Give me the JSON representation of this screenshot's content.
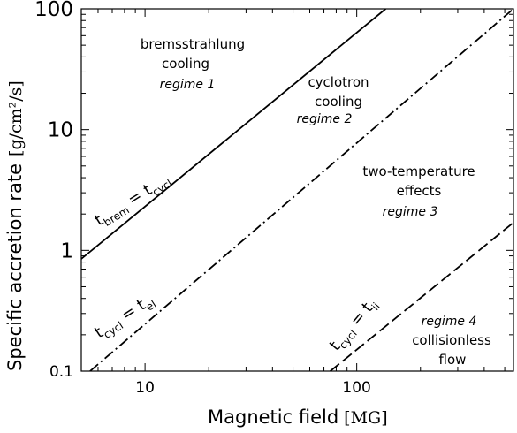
{
  "chart_data": {
    "type": "line",
    "xscale": "log",
    "yscale": "log",
    "xlim": [
      5,
      550
    ],
    "ylim": [
      0.1,
      100
    ],
    "xlabel": "Magnetic field",
    "xunit": "[MG]",
    "ylabel": "Specific accretion rate",
    "yunit": "[g/cm²/s]",
    "xticks": [
      {
        "value": 10,
        "label": "10"
      },
      {
        "value": 100,
        "label": "100"
      }
    ],
    "yticks": [
      {
        "value": 0.1,
        "label": "0.1"
      },
      {
        "value": 1,
        "label": "1"
      },
      {
        "value": 10,
        "label": "10"
      },
      {
        "value": 100,
        "label": "100"
      }
    ],
    "series": [
      {
        "id": "brem",
        "style": "solid",
        "x": [
          5,
          137
        ],
        "y": [
          0.85,
          100
        ],
        "label_main": "t",
        "label_sub1": "brem",
        "label_eq": " = t",
        "label_sub2": "cycl"
      },
      {
        "id": "el",
        "style": "dashdot",
        "x": [
          5.5,
          550
        ],
        "y": [
          0.1,
          100
        ],
        "label_main": "t",
        "label_sub1": "cycl",
        "label_eq": " = t",
        "label_sub2": "el"
      },
      {
        "id": "ii",
        "style": "dashed",
        "x": [
          75,
          550
        ],
        "y": [
          0.1,
          1.7
        ],
        "label_main": "t",
        "label_sub1": "cycl",
        "label_eq": " = t",
        "label_sub2": "ii"
      }
    ],
    "regions": [
      {
        "lines": [
          "bremsstrahlung",
          "cooling"
        ],
        "regime": "regime 1"
      },
      {
        "lines": [
          "cyclotron",
          "cooling"
        ],
        "regime": "regime 2"
      },
      {
        "lines": [
          "two-temperature",
          "effects"
        ],
        "regime": "regime 3"
      },
      {
        "regime": "regime 4",
        "lines": [
          "collisionless",
          "flow"
        ]
      }
    ],
    "grid": false
  }
}
